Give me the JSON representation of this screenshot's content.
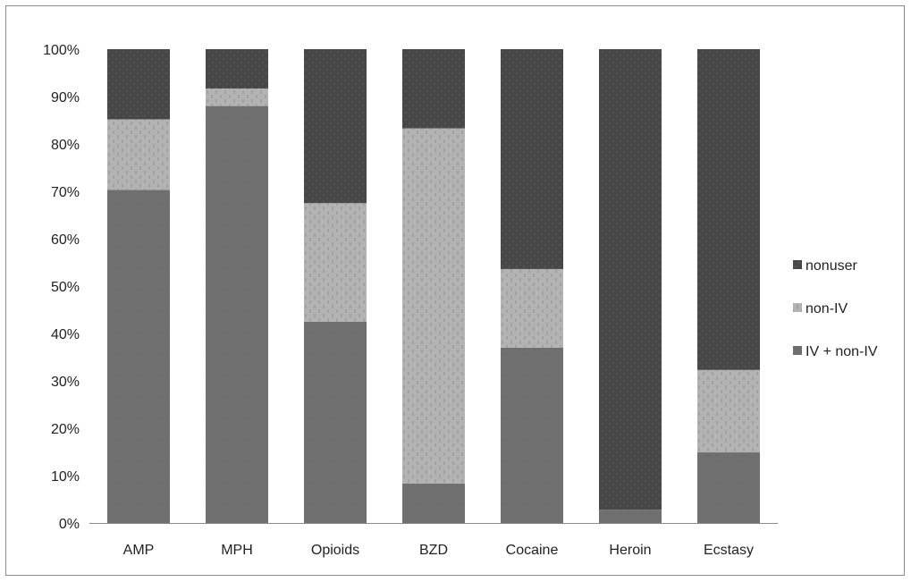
{
  "chart_data": {
    "type": "bar",
    "stacked": true,
    "categories": [
      "AMP",
      "MPH",
      "Opioids",
      "BZD",
      "Cocaine",
      "Heroin",
      "Ecstasy"
    ],
    "series": [
      {
        "name": "IV + non-IV",
        "values": [
          70.3,
          88.0,
          42.5,
          8.3,
          37.0,
          2.8,
          14.9
        ],
        "color": "#6f6f6f",
        "pattern": "solid"
      },
      {
        "name": "non-IV",
        "values": [
          14.9,
          3.7,
          25.0,
          75.0,
          16.6,
          0.0,
          17.4
        ],
        "color": "#b2b2b2",
        "pattern": "dashes"
      },
      {
        "name": "nonuser",
        "values": [
          14.8,
          8.3,
          32.5,
          16.7,
          46.4,
          97.2,
          67.7
        ],
        "color": "#474747",
        "pattern": "dots"
      }
    ],
    "ylim": [
      0,
      100
    ],
    "yticks": [
      "0%",
      "10%",
      "20%",
      "30%",
      "40%",
      "50%",
      "60%",
      "70%",
      "80%",
      "90%",
      "100%"
    ],
    "legend_order": [
      "nonuser",
      "non-IV",
      "IV + non-IV"
    ],
    "legend_position": "right",
    "grid": false,
    "title": "",
    "xlabel": "",
    "ylabel": ""
  }
}
